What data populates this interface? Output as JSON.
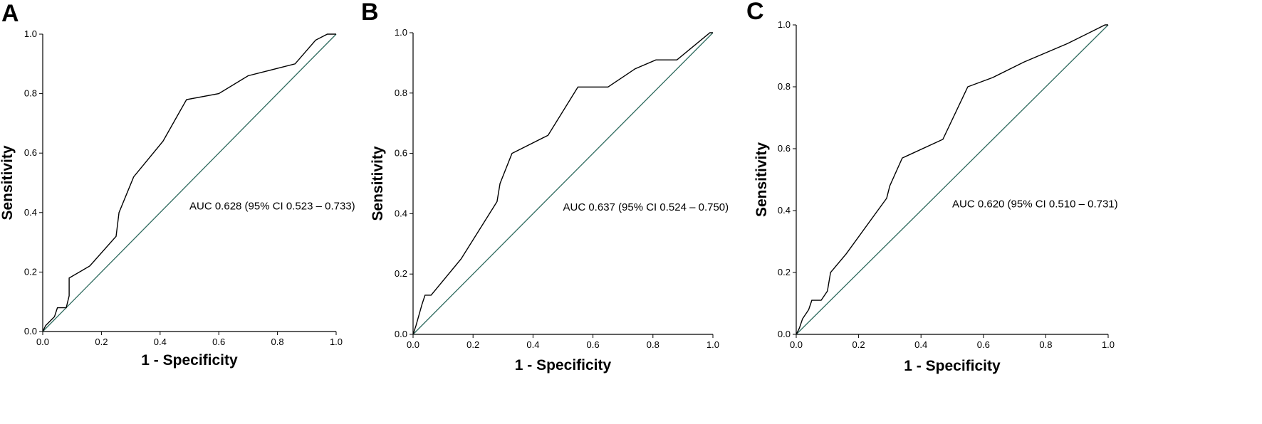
{
  "chart_data": [
    {
      "type": "line",
      "panel_label": "A",
      "xlabel": "1 - Specificity",
      "ylabel": "Sensitivity",
      "xlim": [
        0,
        1
      ],
      "ylim": [
        0,
        1
      ],
      "xticks": [
        "0.0",
        "0.2",
        "0.4",
        "0.6",
        "0.8",
        "1.0"
      ],
      "yticks": [
        "0.0",
        "0.2",
        "0.4",
        "0.6",
        "0.8",
        "1.0"
      ],
      "annotation": "AUC 0.628 (95% CI 0.523 – 0.733)",
      "annotation_pos": [
        0.5,
        0.41
      ],
      "reference_line": [
        [
          0,
          0
        ],
        [
          1,
          1
        ]
      ],
      "colors": {
        "roc": "#000000",
        "reference": "#2f6b5f"
      },
      "series": [
        {
          "x": [
            0,
            0.01,
            0.02,
            0.04,
            0.05,
            0.08,
            0.09,
            0.09,
            0.16,
            0.25,
            0.26,
            0.31,
            0.41,
            0.49,
            0.6,
            0.7,
            0.86,
            0.93,
            0.97,
            1.0
          ],
          "y": [
            0,
            0.02,
            0.03,
            0.05,
            0.08,
            0.08,
            0.12,
            0.18,
            0.22,
            0.32,
            0.4,
            0.52,
            0.64,
            0.78,
            0.8,
            0.86,
            0.9,
            0.98,
            1.0,
            1.0
          ]
        }
      ]
    },
    {
      "type": "line",
      "panel_label": "B",
      "xlabel": "1 - Specificity",
      "ylabel": "Sensitivity",
      "xlim": [
        0,
        1
      ],
      "ylim": [
        0,
        1
      ],
      "xticks": [
        "0.0",
        "0.2",
        "0.4",
        "0.6",
        "0.8",
        "1.0"
      ],
      "yticks": [
        "0.0",
        "0.2",
        "0.4",
        "0.6",
        "0.8",
        "1.0"
      ],
      "annotation": "AUC 0.637 (95% CI 0.524 – 0.750)",
      "annotation_pos": [
        0.5,
        0.41
      ],
      "reference_line": [
        [
          0,
          0
        ],
        [
          1,
          1
        ]
      ],
      "colors": {
        "roc": "#000000",
        "reference": "#2f6b5f"
      },
      "series": [
        {
          "x": [
            0,
            0.01,
            0.03,
            0.04,
            0.06,
            0.16,
            0.28,
            0.29,
            0.33,
            0.45,
            0.55,
            0.65,
            0.74,
            0.81,
            0.88,
            0.99,
            1.0
          ],
          "y": [
            0,
            0.03,
            0.1,
            0.13,
            0.13,
            0.25,
            0.44,
            0.5,
            0.6,
            0.66,
            0.82,
            0.82,
            0.88,
            0.91,
            0.91,
            1.0,
            1.0
          ]
        }
      ]
    },
    {
      "type": "line",
      "panel_label": "C",
      "xlabel": "1 - Specificity",
      "ylabel": "Sensitivity",
      "xlim": [
        0,
        1
      ],
      "ylim": [
        0,
        1
      ],
      "xticks": [
        "0.0",
        "0.2",
        "0.4",
        "0.6",
        "0.8",
        "1.0"
      ],
      "yticks": [
        "0.0",
        "0.2",
        "0.4",
        "0.6",
        "0.8",
        "1.0"
      ],
      "annotation": "AUC 0.620 (95% CI 0.510 – 0.731)",
      "annotation_pos": [
        0.5,
        0.41
      ],
      "reference_line": [
        [
          0,
          0
        ],
        [
          1,
          1
        ]
      ],
      "colors": {
        "roc": "#000000",
        "reference": "#2f6b5f"
      },
      "series": [
        {
          "x": [
            0,
            0.01,
            0.02,
            0.04,
            0.05,
            0.08,
            0.1,
            0.11,
            0.16,
            0.29,
            0.3,
            0.34,
            0.47,
            0.55,
            0.63,
            0.73,
            0.87,
            0.99,
            1.0
          ],
          "y": [
            0,
            0.02,
            0.05,
            0.08,
            0.11,
            0.11,
            0.14,
            0.2,
            0.26,
            0.44,
            0.48,
            0.57,
            0.63,
            0.8,
            0.83,
            0.88,
            0.94,
            1.0,
            1.0
          ]
        }
      ]
    }
  ]
}
